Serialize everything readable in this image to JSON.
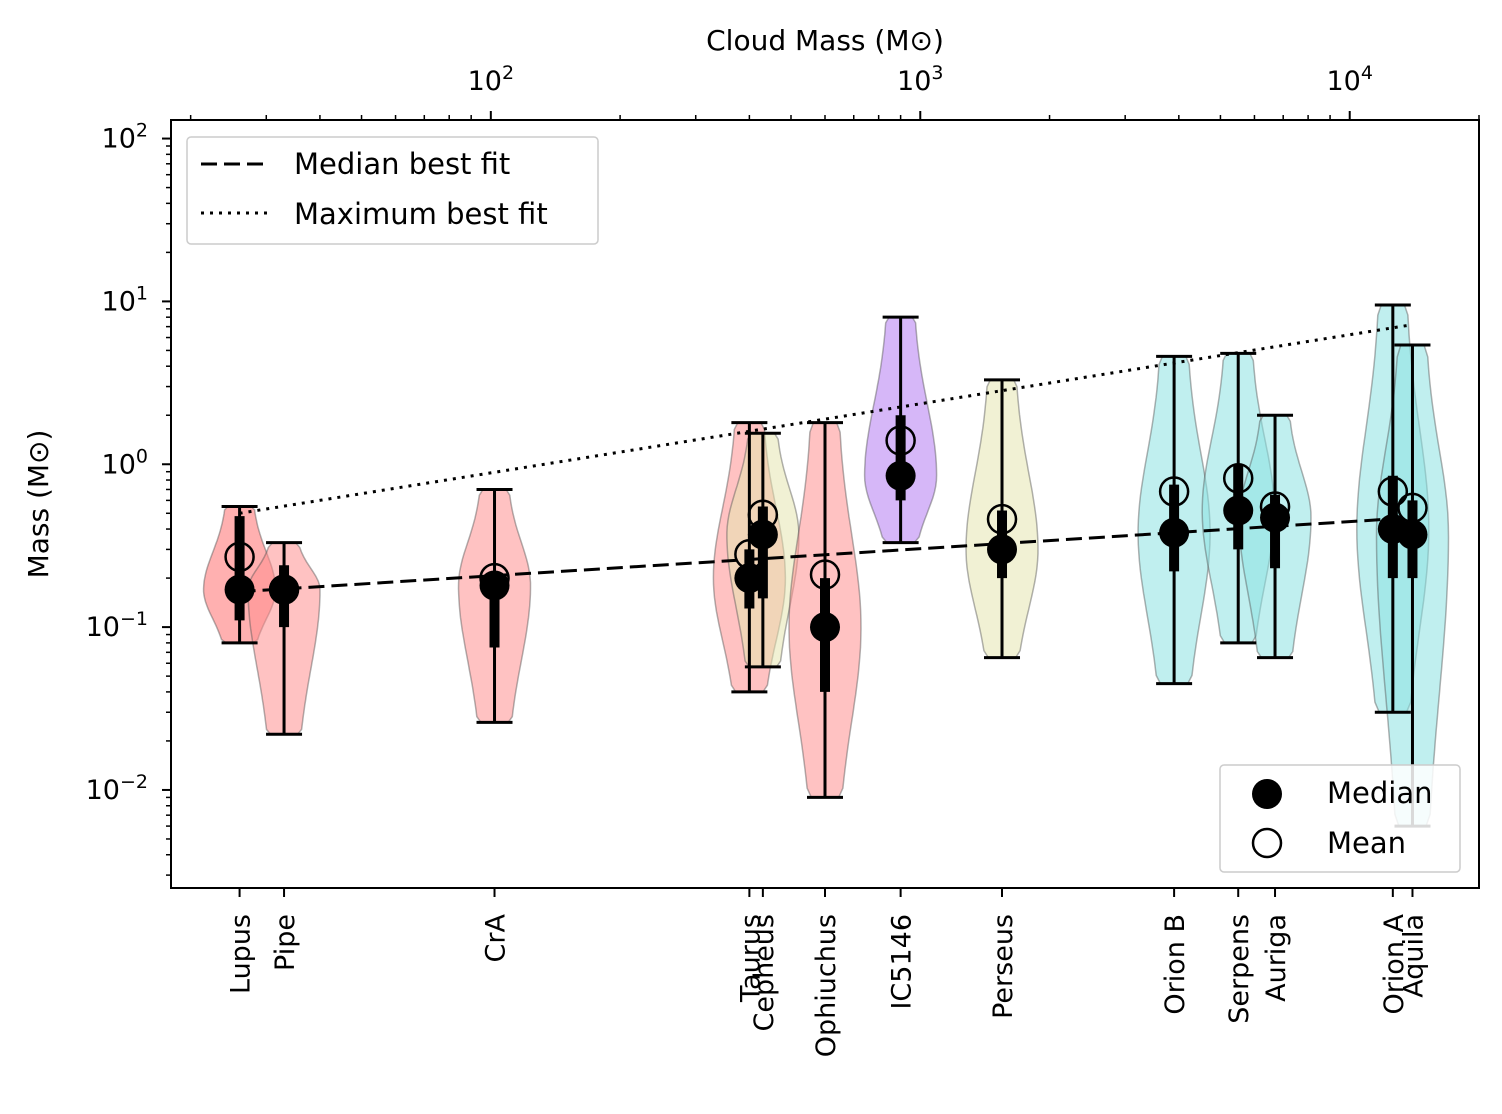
{
  "chart_data": {
    "type": "violin",
    "top_axis_label": "Cloud Mass (M⊙)",
    "ylabel": "Mass (M⊙)",
    "x_scale": "log",
    "y_scale": "log",
    "xlim": [
      18,
      20000
    ],
    "ylim": [
      0.0025,
      130
    ],
    "top_ticks": [
      {
        "value": 100,
        "base": "10",
        "exp": "2"
      },
      {
        "value": 1000,
        "base": "10",
        "exp": "3"
      },
      {
        "value": 10000,
        "base": "10",
        "exp": "4"
      }
    ],
    "y_ticks": [
      {
        "value": 0.01,
        "base": "10",
        "exp": "−2"
      },
      {
        "value": 0.1,
        "base": "10",
        "exp": "−1"
      },
      {
        "value": 1,
        "base": "10",
        "exp": "0"
      },
      {
        "value": 10,
        "base": "10",
        "exp": "1"
      },
      {
        "value": 100,
        "base": "10",
        "exp": "2"
      }
    ],
    "clouds": [
      {
        "name": "Lupus",
        "cloud_mass": 26,
        "color": "#ff6f6f",
        "min": 0.08,
        "max": 0.55,
        "median": 0.17,
        "mean": 0.27,
        "q1": 0.11,
        "q3": 0.48,
        "violin_width": 0.9
      },
      {
        "name": "Pipe",
        "cloud_mass": 33,
        "color": "#ff8f8f",
        "min": 0.022,
        "max": 0.33,
        "median": 0.17,
        "mean": 0.17,
        "q1": 0.1,
        "q3": 0.24,
        "violin_width": 0.9
      },
      {
        "name": "CrA",
        "cloud_mass": 102,
        "color": "#ff8f8f",
        "min": 0.026,
        "max": 0.7,
        "median": 0.18,
        "mean": 0.2,
        "q1": 0.075,
        "q3": 0.22,
        "violin_width": 0.9
      },
      {
        "name": "Taurus",
        "cloud_mass": 400,
        "color": "#ff8f8f",
        "min": 0.04,
        "max": 1.8,
        "median": 0.2,
        "mean": 0.28,
        "q1": 0.13,
        "q3": 0.3,
        "violin_width": 0.9
      },
      {
        "name": "Cepheus",
        "cloud_mass": 430,
        "color": "#e6e6b0",
        "min": 0.057,
        "max": 1.55,
        "median": 0.37,
        "mean": 0.49,
        "q1": 0.15,
        "q3": 0.55,
        "violin_width": 0.9
      },
      {
        "name": "Ophiuchus",
        "cloud_mass": 600,
        "color": "#ff8f8f",
        "min": 0.009,
        "max": 1.8,
        "median": 0.1,
        "mean": 0.21,
        "q1": 0.04,
        "q3": 0.2,
        "violin_width": 0.9
      },
      {
        "name": "IC5146",
        "cloud_mass": 900,
        "color": "#b57cf2",
        "min": 0.33,
        "max": 8.0,
        "median": 0.85,
        "mean": 1.4,
        "q1": 0.6,
        "q3": 2.0,
        "violin_width": 0.9
      },
      {
        "name": "Perseus",
        "cloud_mass": 1550,
        "color": "#e6e6b0",
        "min": 0.065,
        "max": 3.3,
        "median": 0.3,
        "mean": 0.46,
        "q1": 0.2,
        "q3": 0.52,
        "violin_width": 0.9
      },
      {
        "name": "Orion B",
        "cloud_mass": 3900,
        "color": "#8de2e2",
        "min": 0.045,
        "max": 4.6,
        "median": 0.38,
        "mean": 0.68,
        "q1": 0.22,
        "q3": 0.75,
        "violin_width": 0.9
      },
      {
        "name": "Serpens",
        "cloud_mass": 5500,
        "color": "#8de2e2",
        "min": 0.08,
        "max": 4.8,
        "median": 0.52,
        "mean": 0.82,
        "q1": 0.3,
        "q3": 1.0,
        "violin_width": 0.9
      },
      {
        "name": "Auriga",
        "cloud_mass": 6700,
        "color": "#8de2e2",
        "min": 0.065,
        "max": 2.0,
        "median": 0.47,
        "mean": 0.55,
        "q1": 0.23,
        "q3": 0.65,
        "violin_width": 0.9
      },
      {
        "name": "Orion A",
        "cloud_mass": 12600,
        "color": "#8de2e2",
        "min": 0.03,
        "max": 9.5,
        "median": 0.4,
        "mean": 0.68,
        "q1": 0.2,
        "q3": 0.85,
        "violin_width": 0.9
      },
      {
        "name": "Aquila",
        "cloud_mass": 14000,
        "color": "#8de2e2",
        "min": 0.006,
        "max": 5.4,
        "median": 0.37,
        "mean": 0.54,
        "q1": 0.2,
        "q3": 0.6,
        "violin_width": 0.9
      }
    ],
    "fits": [
      {
        "name": "Median best fit",
        "style": "dashed",
        "points": [
          [
            26,
            0.165
          ],
          [
            14000,
            0.47
          ]
        ]
      },
      {
        "name": "Maximum best fit",
        "style": "dotted",
        "points": [
          [
            26,
            0.5
          ],
          [
            14000,
            7.2
          ]
        ]
      }
    ],
    "legend_lines": {
      "position": "upper-left",
      "entries": [
        "Median best fit",
        "Maximum best fit"
      ]
    },
    "legend_markers": {
      "position": "lower-right",
      "entries": [
        "Median",
        "Mean"
      ]
    }
  }
}
